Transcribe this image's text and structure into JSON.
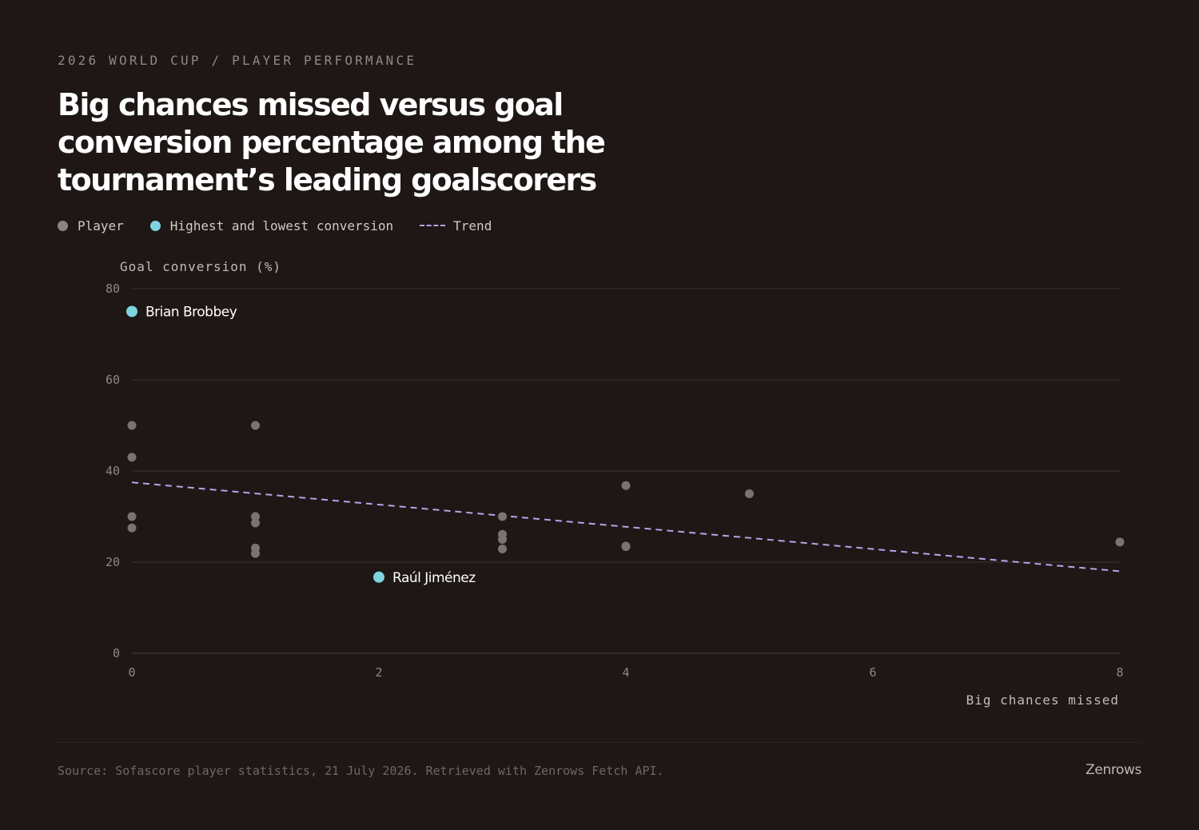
{
  "header": {
    "eyebrow": "2026 WORLD CUP / PLAYER PERFORMANCE",
    "title": "Big chances missed versus goal conversion percentage among the tournament’s leading goalscorers"
  },
  "legend": {
    "player": "Player",
    "highlight": "Highest and lowest conversion",
    "trend": "Trend"
  },
  "footer": {
    "source": "Source: Sofascore player statistics, 21 July 2026. Retrieved with Zenrows Fetch API.",
    "brand": "Zenrows"
  },
  "colors": {
    "background": "#1e1715",
    "player": "#7b7370",
    "highlight": "#7fd3df",
    "trend": "#b9a2ea",
    "grid": "#3a3330"
  },
  "chart_data": {
    "type": "scatter",
    "xlabel": "Big chances missed",
    "ylabel": "Goal conversion (%)",
    "xlim": [
      0,
      8
    ],
    "ylim": [
      0,
      80
    ],
    "x_ticks": [
      0,
      2,
      4,
      6,
      8
    ],
    "y_ticks": [
      0,
      20,
      40,
      60,
      80
    ],
    "grid": "horizontal",
    "legend_position": "top-left",
    "series": [
      {
        "name": "Player",
        "points": [
          {
            "x": 0,
            "y": 50
          },
          {
            "x": 0,
            "y": 43
          },
          {
            "x": 0,
            "y": 30
          },
          {
            "x": 0,
            "y": 27.5
          },
          {
            "x": 1,
            "y": 50
          },
          {
            "x": 1,
            "y": 30
          },
          {
            "x": 1,
            "y": 28.6
          },
          {
            "x": 1,
            "y": 23.1
          },
          {
            "x": 1,
            "y": 21.9
          },
          {
            "x": 3,
            "y": 30
          },
          {
            "x": 3,
            "y": 26.1
          },
          {
            "x": 3,
            "y": 25
          },
          {
            "x": 3,
            "y": 22.9
          },
          {
            "x": 4,
            "y": 36.8
          },
          {
            "x": 4,
            "y": 23.5
          },
          {
            "x": 4,
            "y": 23.4
          },
          {
            "x": 5,
            "y": 35
          },
          {
            "x": 8,
            "y": 24.4
          }
        ]
      },
      {
        "name": "Highest and lowest conversion",
        "points": [
          {
            "x": 0,
            "y": 75,
            "label": "Brian Brobbey"
          },
          {
            "x": 2,
            "y": 16.7,
            "label": "Raúl Jiménez"
          }
        ]
      }
    ],
    "trend": {
      "name": "Trend",
      "start": {
        "x": 0,
        "y": 37.5
      },
      "end": {
        "x": 8,
        "y": 18
      }
    }
  }
}
